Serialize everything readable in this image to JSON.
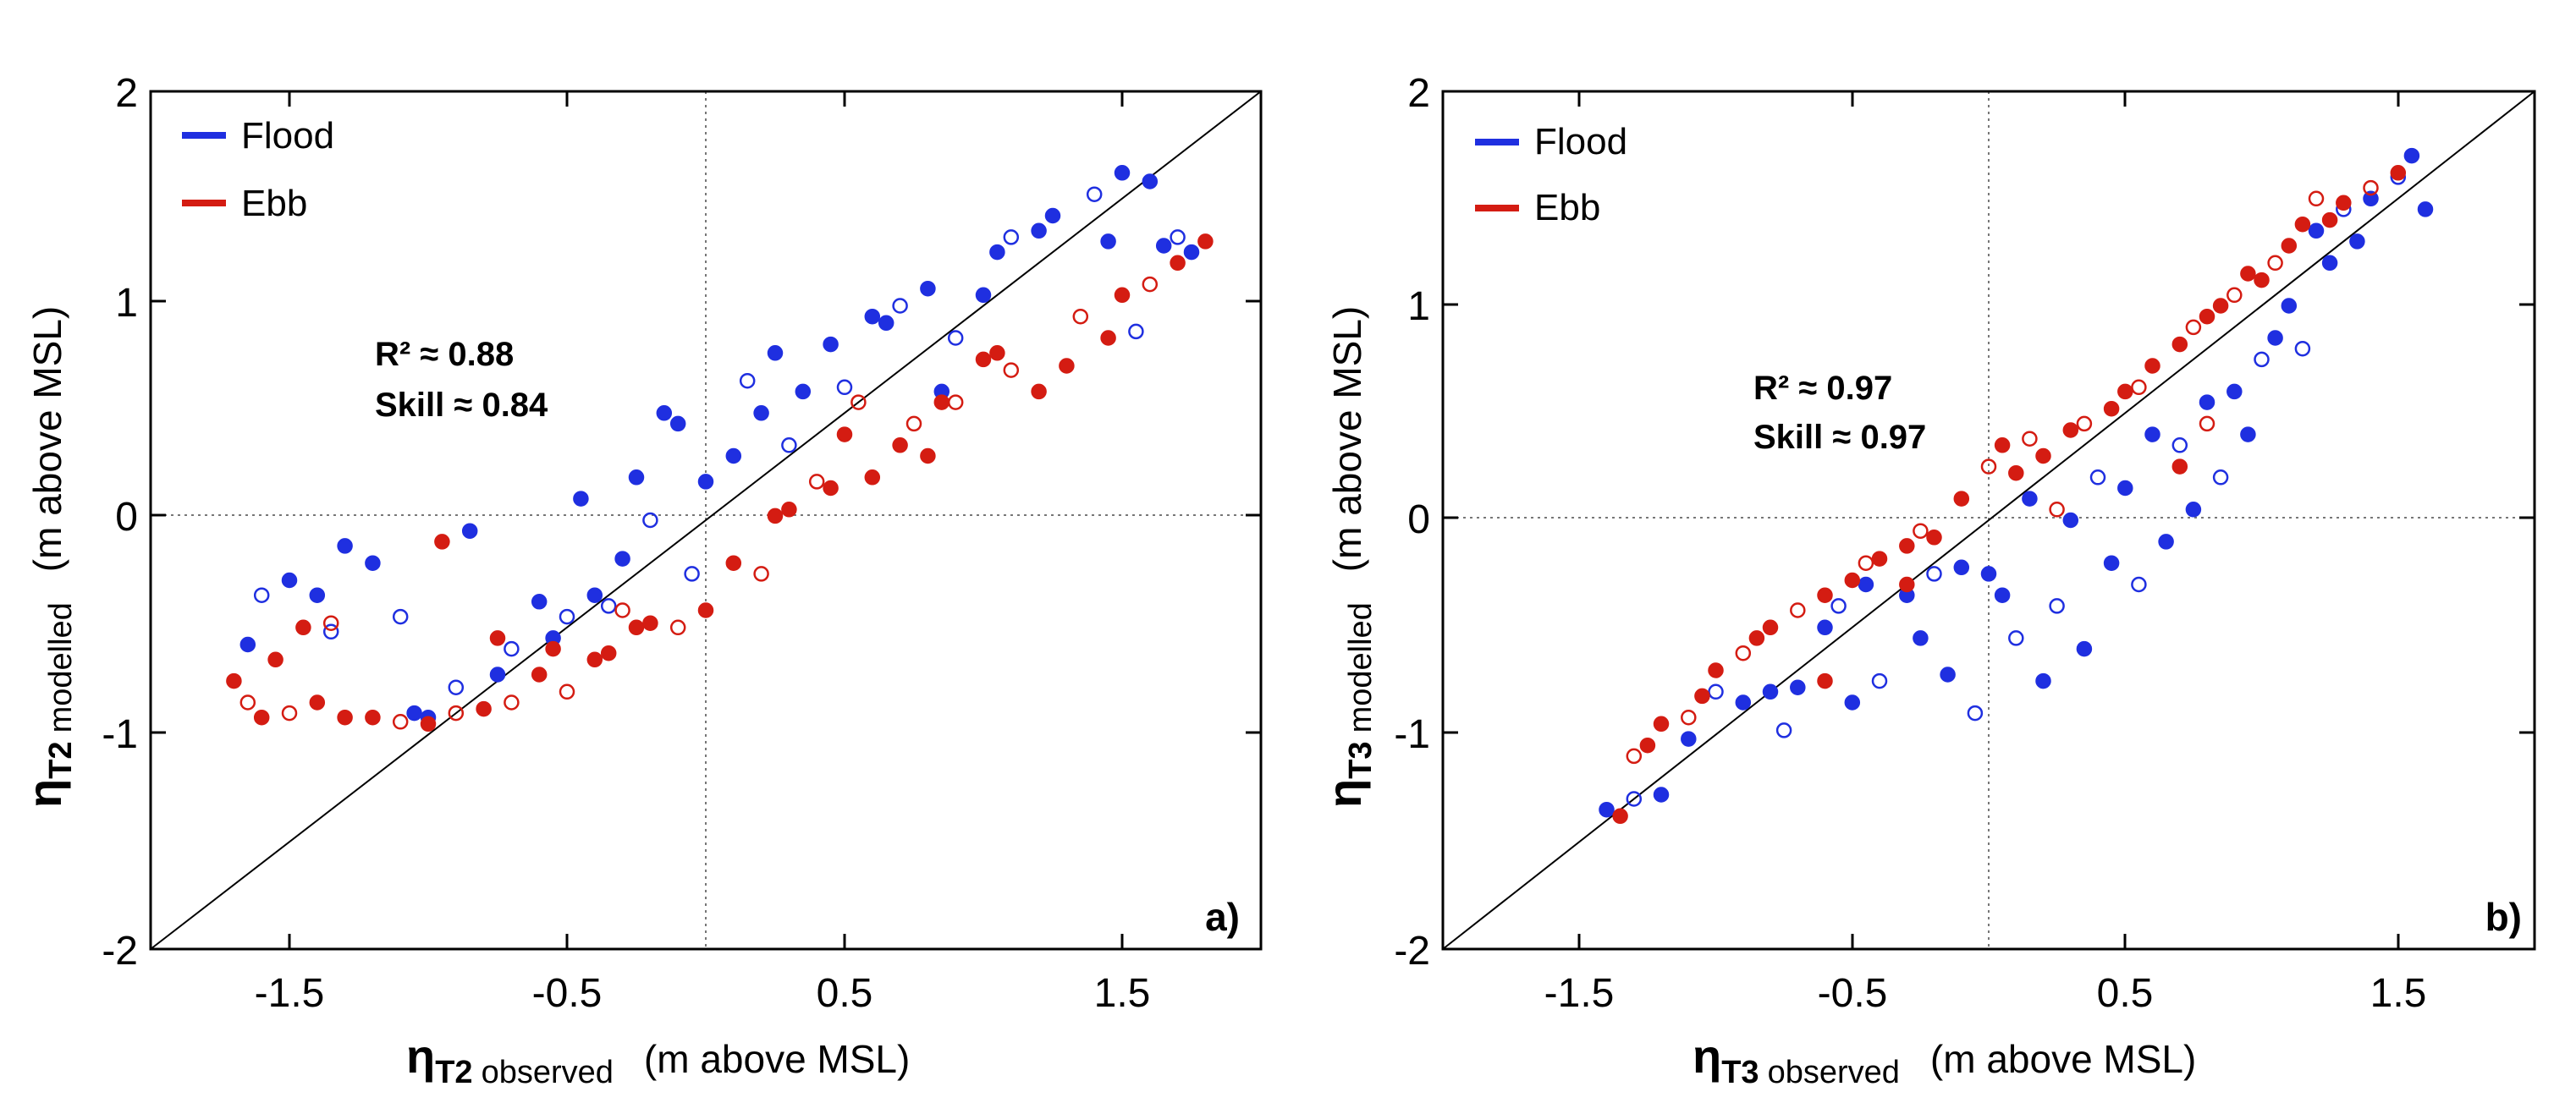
{
  "chart_data": [
    {
      "panel_tag": "a)",
      "type": "scatter",
      "xlim": [
        -2.0,
        2.0
      ],
      "ylim": [
        -2,
        2
      ],
      "x_ticks": [
        -1.5,
        -0.5,
        0.5,
        1.5
      ],
      "x_tick_labels": [
        "-1.5",
        "-0.5",
        "0.5",
        "1.5"
      ],
      "y_ticks": [
        -2,
        -1,
        0,
        1,
        2
      ],
      "y_tick_labels": [
        "-2",
        "-1",
        "0",
        "1",
        "2"
      ],
      "xlabel": {
        "symbol": "η",
        "subscript": "T2",
        "qualifier": "observed",
        "unit": "(m above MSL)"
      },
      "ylabel": {
        "symbol": "η",
        "subscript": "T2",
        "qualifier": "modelled",
        "unit": "(m above MSL)"
      },
      "reference_lines": [
        "1:1 line",
        "x = 0 (dotted)",
        "y = 0 (dotted)"
      ],
      "stats": {
        "r2": "R² ≈ 0.88",
        "skill": "Skill ≈ 0.84"
      },
      "legend": [
        {
          "label": "Flood",
          "color": "#1f2fe0"
        },
        {
          "label": "Ebb",
          "color": "#d41c12"
        }
      ],
      "series": [
        {
          "name": "Flood",
          "color": "#1f2fe0",
          "points": [
            [
              -1.65,
              -0.58
            ],
            [
              -1.6,
              -0.35
            ],
            [
              -1.5,
              -0.28
            ],
            [
              -1.4,
              -0.35
            ],
            [
              -1.35,
              -0.52
            ],
            [
              -1.3,
              -0.12
            ],
            [
              -1.2,
              -0.2
            ],
            [
              -1.1,
              -0.45
            ],
            [
              -1.05,
              -0.9
            ],
            [
              -1.0,
              -0.92
            ],
            [
              -0.9,
              -0.78
            ],
            [
              -0.85,
              -0.05
            ],
            [
              -0.75,
              -0.72
            ],
            [
              -0.7,
              -0.6
            ],
            [
              -0.6,
              -0.38
            ],
            [
              -0.55,
              -0.55
            ],
            [
              -0.5,
              -0.45
            ],
            [
              -0.45,
              0.1
            ],
            [
              -0.4,
              -0.35
            ],
            [
              -0.35,
              -0.4
            ],
            [
              -0.3,
              -0.18
            ],
            [
              -0.25,
              0.2
            ],
            [
              -0.2,
              0.0
            ],
            [
              -0.15,
              0.5
            ],
            [
              -0.1,
              0.45
            ],
            [
              -0.05,
              -0.25
            ],
            [
              0.0,
              0.18
            ],
            [
              0.1,
              0.3
            ],
            [
              0.15,
              0.65
            ],
            [
              0.2,
              0.5
            ],
            [
              0.25,
              0.78
            ],
            [
              0.3,
              0.35
            ],
            [
              0.35,
              0.6
            ],
            [
              0.45,
              0.82
            ],
            [
              0.5,
              0.62
            ],
            [
              0.6,
              0.95
            ],
            [
              0.65,
              0.92
            ],
            [
              0.7,
              1.0
            ],
            [
              0.8,
              1.08
            ],
            [
              0.85,
              0.6
            ],
            [
              0.9,
              0.85
            ],
            [
              1.0,
              1.05
            ],
            [
              1.05,
              1.25
            ],
            [
              1.1,
              1.32
            ],
            [
              1.2,
              1.35
            ],
            [
              1.25,
              1.42
            ],
            [
              1.4,
              1.52
            ],
            [
              1.45,
              1.3
            ],
            [
              1.5,
              1.62
            ],
            [
              1.55,
              0.88
            ],
            [
              1.6,
              1.58
            ],
            [
              1.65,
              1.28
            ],
            [
              1.7,
              1.32
            ],
            [
              1.75,
              1.25
            ]
          ]
        },
        {
          "name": "Ebb",
          "color": "#d41c12",
          "points": [
            [
              -1.7,
              -0.75
            ],
            [
              -1.65,
              -0.85
            ],
            [
              -1.6,
              -0.92
            ],
            [
              -1.55,
              -0.65
            ],
            [
              -1.5,
              -0.9
            ],
            [
              -1.45,
              -0.5
            ],
            [
              -1.4,
              -0.85
            ],
            [
              -1.35,
              -0.48
            ],
            [
              -1.3,
              -0.92
            ],
            [
              -1.2,
              -0.92
            ],
            [
              -1.1,
              -0.94
            ],
            [
              -1.0,
              -0.95
            ],
            [
              -0.95,
              -0.1
            ],
            [
              -0.9,
              -0.9
            ],
            [
              -0.8,
              -0.88
            ],
            [
              -0.75,
              -0.55
            ],
            [
              -0.7,
              -0.85
            ],
            [
              -0.6,
              -0.72
            ],
            [
              -0.55,
              -0.6
            ],
            [
              -0.5,
              -0.8
            ],
            [
              -0.4,
              -0.65
            ],
            [
              -0.35,
              -0.62
            ],
            [
              -0.3,
              -0.42
            ],
            [
              -0.25,
              -0.5
            ],
            [
              -0.2,
              -0.48
            ],
            [
              -0.1,
              -0.5
            ],
            [
              0.0,
              -0.42
            ],
            [
              0.1,
              -0.2
            ],
            [
              0.2,
              -0.25
            ],
            [
              0.25,
              0.02
            ],
            [
              0.3,
              0.05
            ],
            [
              0.4,
              0.18
            ],
            [
              0.45,
              0.15
            ],
            [
              0.5,
              0.4
            ],
            [
              0.55,
              0.55
            ],
            [
              0.6,
              0.2
            ],
            [
              0.7,
              0.35
            ],
            [
              0.75,
              0.45
            ],
            [
              0.8,
              0.3
            ],
            [
              0.85,
              0.55
            ],
            [
              0.9,
              0.55
            ],
            [
              1.0,
              0.75
            ],
            [
              1.05,
              0.78
            ],
            [
              1.1,
              0.7
            ],
            [
              1.2,
              0.6
            ],
            [
              1.3,
              0.72
            ],
            [
              1.35,
              0.95
            ],
            [
              1.45,
              0.85
            ],
            [
              1.5,
              1.05
            ],
            [
              1.6,
              1.1
            ],
            [
              1.7,
              1.2
            ],
            [
              1.8,
              1.3
            ]
          ]
        }
      ]
    },
    {
      "panel_tag": "b)",
      "type": "scatter",
      "xlim": [
        -2.0,
        2.0
      ],
      "ylim": [
        -2,
        2
      ],
      "x_ticks": [
        -1.5,
        -0.5,
        0.5,
        1.5
      ],
      "x_tick_labels": [
        "-1.5",
        "-0.5",
        "0.5",
        "1.5"
      ],
      "y_ticks": [
        -2,
        -1,
        0,
        1,
        2
      ],
      "y_tick_labels": [
        "-2",
        "-1",
        "0",
        "1",
        "2"
      ],
      "xlabel": {
        "symbol": "η",
        "subscript": "T3",
        "qualifier": "observed",
        "unit": "(m above MSL)"
      },
      "ylabel": {
        "symbol": "η",
        "subscript": "T3",
        "qualifier": "modelled",
        "unit": "(m above MSL)"
      },
      "reference_lines": [
        "1:1 line",
        "x = 0 (dotted)",
        "y = 0 (dotted)"
      ],
      "stats": {
        "r2": "R² ≈ 0.97",
        "skill": "Skill ≈ 0.97"
      },
      "legend": [
        {
          "label": "Flood",
          "color": "#1f2fe0"
        },
        {
          "label": "Ebb",
          "color": "#d41c12"
        }
      ],
      "series": [
        {
          "name": "Flood",
          "color": "#1f2fe0",
          "points": [
            [
              -1.4,
              -1.35
            ],
            [
              -1.3,
              -1.3
            ],
            [
              -1.2,
              -1.28
            ],
            [
              -1.1,
              -1.02
            ],
            [
              -1.0,
              -0.8
            ],
            [
              -0.9,
              -0.85
            ],
            [
              -0.8,
              -0.8
            ],
            [
              -0.75,
              -0.98
            ],
            [
              -0.7,
              -0.78
            ],
            [
              -0.6,
              -0.5
            ],
            [
              -0.55,
              -0.4
            ],
            [
              -0.5,
              -0.85
            ],
            [
              -0.45,
              -0.3
            ],
            [
              -0.4,
              -0.75
            ],
            [
              -0.3,
              -0.35
            ],
            [
              -0.25,
              -0.55
            ],
            [
              -0.2,
              -0.25
            ],
            [
              -0.15,
              -0.72
            ],
            [
              -0.1,
              -0.22
            ],
            [
              -0.05,
              -0.9
            ],
            [
              0.0,
              -0.25
            ],
            [
              0.05,
              -0.35
            ],
            [
              0.1,
              -0.55
            ],
            [
              0.15,
              0.1
            ],
            [
              0.2,
              -0.75
            ],
            [
              0.25,
              -0.4
            ],
            [
              0.3,
              0.0
            ],
            [
              0.35,
              -0.6
            ],
            [
              0.4,
              0.2
            ],
            [
              0.45,
              -0.2
            ],
            [
              0.5,
              0.15
            ],
            [
              0.55,
              -0.3
            ],
            [
              0.6,
              0.4
            ],
            [
              0.65,
              -0.1
            ],
            [
              0.7,
              0.35
            ],
            [
              0.75,
              0.05
            ],
            [
              0.8,
              0.55
            ],
            [
              0.85,
              0.2
            ],
            [
              0.9,
              0.6
            ],
            [
              0.95,
              0.4
            ],
            [
              1.0,
              0.75
            ],
            [
              1.05,
              0.85
            ],
            [
              1.1,
              1.0
            ],
            [
              1.15,
              0.8
            ],
            [
              1.2,
              1.35
            ],
            [
              1.25,
              1.2
            ],
            [
              1.3,
              1.45
            ],
            [
              1.35,
              1.3
            ],
            [
              1.4,
              1.5
            ],
            [
              1.5,
              1.6
            ],
            [
              1.55,
              1.7
            ],
            [
              1.6,
              1.45
            ]
          ]
        },
        {
          "name": "Ebb",
          "color": "#d41c12",
          "points": [
            [
              -1.35,
              -1.38
            ],
            [
              -1.3,
              -1.1
            ],
            [
              -1.25,
              -1.05
            ],
            [
              -1.2,
              -0.95
            ],
            [
              -1.1,
              -0.92
            ],
            [
              -1.05,
              -0.82
            ],
            [
              -1.0,
              -0.7
            ],
            [
              -0.9,
              -0.62
            ],
            [
              -0.85,
              -0.55
            ],
            [
              -0.8,
              -0.5
            ],
            [
              -0.7,
              -0.42
            ],
            [
              -0.6,
              -0.35
            ],
            [
              -0.5,
              -0.28
            ],
            [
              -0.45,
              -0.2
            ],
            [
              -0.4,
              -0.18
            ],
            [
              -0.3,
              -0.12
            ],
            [
              -0.25,
              -0.05
            ],
            [
              -0.2,
              -0.08
            ],
            [
              -0.1,
              0.1
            ],
            [
              0.0,
              0.25
            ],
            [
              0.05,
              0.35
            ],
            [
              0.1,
              0.22
            ],
            [
              0.15,
              0.38
            ],
            [
              0.2,
              0.3
            ],
            [
              0.3,
              0.42
            ],
            [
              0.35,
              0.45
            ],
            [
              0.45,
              0.52
            ],
            [
              0.5,
              0.6
            ],
            [
              0.55,
              0.62
            ],
            [
              0.6,
              0.72
            ],
            [
              0.7,
              0.82
            ],
            [
              0.75,
              0.9
            ],
            [
              0.8,
              0.95
            ],
            [
              0.85,
              1.0
            ],
            [
              0.9,
              1.05
            ],
            [
              0.95,
              1.15
            ],
            [
              1.0,
              1.12
            ],
            [
              1.05,
              1.2
            ],
            [
              1.1,
              1.28
            ],
            [
              1.15,
              1.38
            ],
            [
              1.2,
              1.5
            ],
            [
              1.25,
              1.4
            ],
            [
              1.3,
              1.48
            ],
            [
              1.4,
              1.55
            ],
            [
              1.5,
              1.62
            ],
            [
              0.7,
              0.25
            ],
            [
              0.8,
              0.45
            ],
            [
              -0.6,
              -0.75
            ],
            [
              -0.3,
              -0.3
            ],
            [
              0.25,
              0.05
            ]
          ]
        }
      ]
    }
  ]
}
